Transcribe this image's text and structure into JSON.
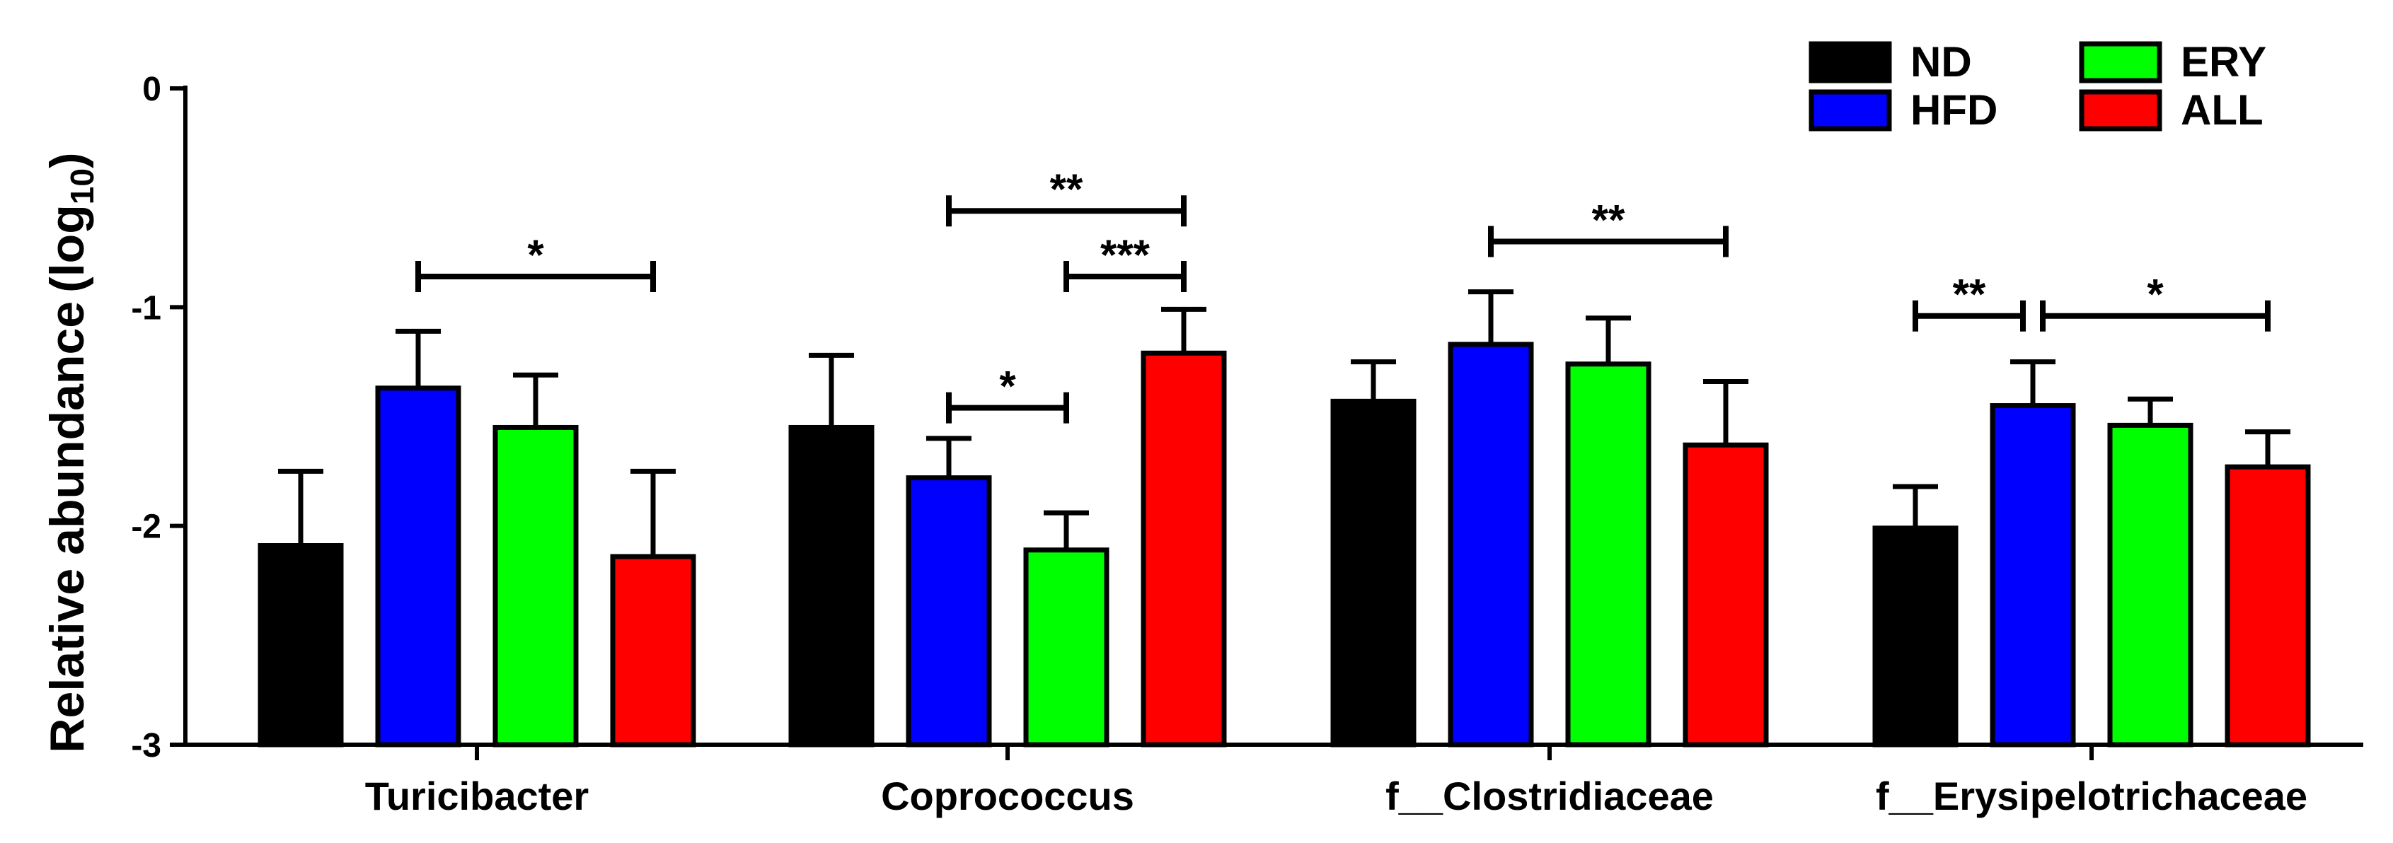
{
  "chart_data": {
    "type": "bar",
    "ylabel": "Relative abundance",
    "ylabel_sub": "10",
    "ylabel_prefix": "log",
    "ylim": [
      -3,
      0
    ],
    "yticks": [
      "0",
      "-1",
      "-2",
      "-3"
    ],
    "ytick_values": [
      0,
      -1,
      -2,
      -3
    ],
    "categories": [
      "Turicibacter",
      "Coprococcus",
      "f__Clostridiaceae",
      "f__Erysipelotrichaceae"
    ],
    "series": [
      {
        "name": "ND",
        "color": "#000000",
        "values": [
          -2.09,
          -1.55,
          -1.43,
          -2.01
        ],
        "errors": [
          0.34,
          0.33,
          0.18,
          0.19
        ]
      },
      {
        "name": "HFD",
        "color": "#0000ff",
        "values": [
          -1.37,
          -1.78,
          -1.17,
          -1.45
        ],
        "errors": [
          0.26,
          0.18,
          0.24,
          0.2
        ]
      },
      {
        "name": "ERY",
        "color": "#00ff00",
        "values": [
          -1.55,
          -2.11,
          -1.26,
          -1.54
        ],
        "errors": [
          0.24,
          0.17,
          0.21,
          0.12
        ]
      },
      {
        "name": "ALL",
        "color": "#ff0000",
        "values": [
          -2.14,
          -1.21,
          -1.63,
          -1.73
        ],
        "errors": [
          0.39,
          0.2,
          0.29,
          0.16
        ]
      }
    ],
    "significance": [
      {
        "category": 0,
        "from": 1,
        "to": 3,
        "label": "*",
        "level": -0.86
      },
      {
        "category": 1,
        "from": 1,
        "to": 3,
        "label": "**",
        "level": -0.56
      },
      {
        "category": 1,
        "from": 2,
        "to": 3,
        "label": "***",
        "level": -0.86
      },
      {
        "category": 1,
        "from": 1,
        "to": 2,
        "label": "*",
        "level": -1.46
      },
      {
        "category": 2,
        "from": 1,
        "to": 3,
        "label": "**",
        "level": -0.7
      },
      {
        "category": 3,
        "from": 0,
        "to": 1,
        "label": "**",
        "level": -1.04
      },
      {
        "category": 3,
        "from": 1,
        "to": 3,
        "label": "*",
        "level": -1.04
      }
    ],
    "legend_position": "top-right"
  }
}
